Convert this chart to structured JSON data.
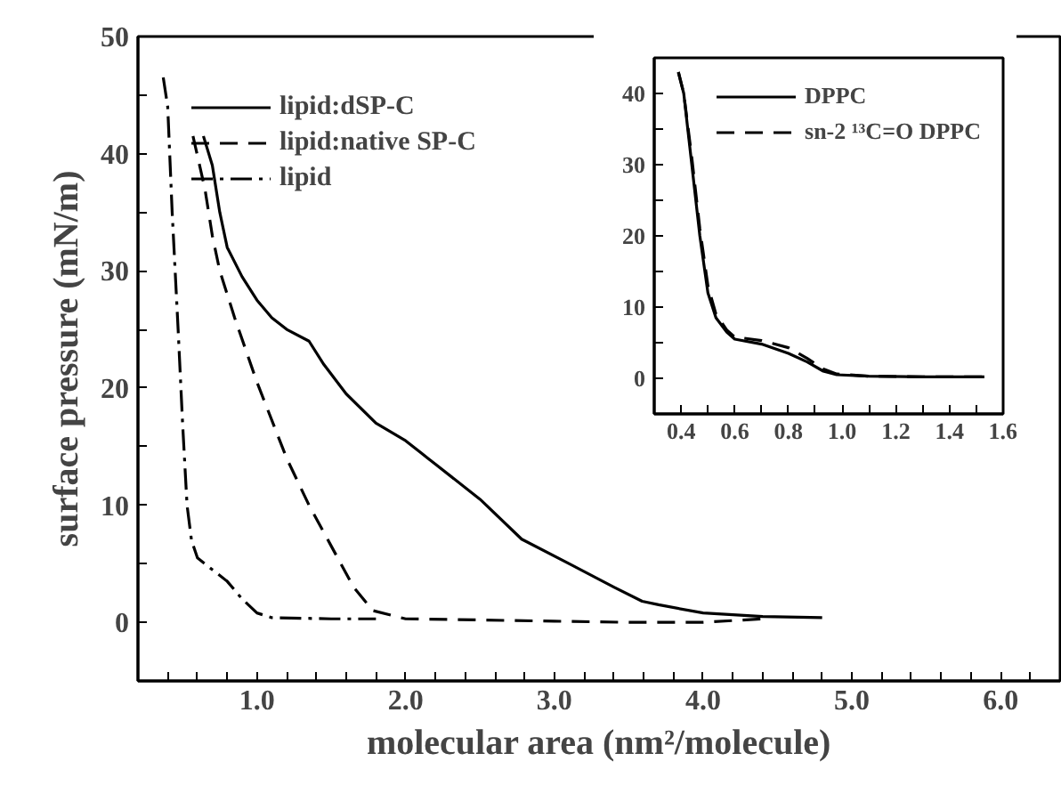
{
  "chart_data": [
    {
      "type": "line",
      "xlabel": "molecular area (nm²/molecule)",
      "ylabel": "surface pressure (mN/m)",
      "xlim": [
        0.2,
        6.4
      ],
      "ylim": [
        -5,
        50
      ],
      "legend": "top left",
      "grid": false,
      "xticks": [
        {
          "value": 0.4,
          "label": null
        },
        {
          "value": 0.6,
          "label": null
        },
        {
          "value": 0.8,
          "label": null
        },
        {
          "value": 1,
          "label": "1.0"
        },
        {
          "value": 1.2,
          "label": null
        },
        {
          "value": 1.4,
          "label": null
        },
        {
          "value": 1.6,
          "label": null
        },
        {
          "value": 1.8,
          "label": null
        },
        {
          "value": 2,
          "label": "2.0"
        },
        {
          "value": 2.2,
          "label": null
        },
        {
          "value": 2.4,
          "label": null
        },
        {
          "value": 2.6,
          "label": null
        },
        {
          "value": 2.8,
          "label": null
        },
        {
          "value": 3,
          "label": "3.0"
        },
        {
          "value": 3.2,
          "label": null
        },
        {
          "value": 3.4,
          "label": null
        },
        {
          "value": 3.6,
          "label": null
        },
        {
          "value": 3.8,
          "label": null
        },
        {
          "value": 4,
          "label": "4.0"
        },
        {
          "value": 4.2,
          "label": null
        },
        {
          "value": 4.4,
          "label": null
        },
        {
          "value": 4.6,
          "label": null
        },
        {
          "value": 4.8,
          "label": null
        },
        {
          "value": 5,
          "label": "5.0"
        },
        {
          "value": 5.2,
          "label": null
        },
        {
          "value": 5.4,
          "label": null
        },
        {
          "value": 5.6,
          "label": null
        },
        {
          "value": 5.8,
          "label": null
        },
        {
          "value": 6,
          "label": "6.0"
        },
        {
          "value": 6.2,
          "label": null
        }
      ],
      "yticks": [
        {
          "value": -5,
          "label": null
        },
        0,
        {
          "value": 5,
          "label": null
        },
        10,
        {
          "value": 15,
          "label": null
        },
        20,
        {
          "value": 25,
          "label": null
        },
        30,
        {
          "value": 35,
          "label": null
        },
        40,
        {
          "value": 45,
          "label": null
        },
        50
      ],
      "series": [
        {
          "name": "lipid:dSP-C",
          "color": "#000000",
          "line_style": "solid",
          "x": [
            0.64,
            0.7,
            0.75,
            0.8,
            0.9,
            1.0,
            1.1,
            1.2,
            1.35,
            1.45,
            1.6,
            1.8,
            2.0,
            2.15,
            2.2,
            2.5,
            2.78,
            3.1,
            3.4,
            3.59,
            3.7,
            4.0,
            4.4,
            4.8
          ],
          "values": [
            41.5,
            39,
            35,
            32,
            29.5,
            27.5,
            26,
            25,
            24,
            22,
            19.5,
            17,
            15.5,
            14,
            13.5,
            10.5,
            7.1,
            5,
            3,
            1.8,
            1.5,
            0.8,
            0.5,
            0.4
          ]
        },
        {
          "name": "lipid:native SP-C",
          "color": "#000000",
          "line_style": "dashed",
          "x": [
            0.57,
            0.65,
            0.7,
            0.75,
            0.85,
            1.0,
            1.2,
            1.35,
            1.5,
            1.65,
            1.78,
            2.0,
            2.5,
            3.0,
            3.5,
            4.0,
            4.4
          ],
          "values": [
            41.5,
            37,
            33,
            30,
            26,
            20.5,
            14,
            10,
            6.5,
            3,
            1,
            0.3,
            0.2,
            0.1,
            0,
            0,
            0.3
          ]
        },
        {
          "name": "lipid",
          "color": "#000000",
          "line_style": "dashdot",
          "x": [
            0.37,
            0.4,
            0.43,
            0.47,
            0.5,
            0.53,
            0.56,
            0.6,
            0.7,
            0.8,
            0.9,
            1.0,
            1.1,
            1.5,
            1.8
          ],
          "values": [
            46.5,
            44,
            35,
            25,
            17,
            10,
            7,
            5.5,
            4.5,
            3.5,
            2,
            0.8,
            0.4,
            0.3,
            0.3
          ]
        }
      ]
    },
    {
      "type": "line",
      "xlim": [
        0.3,
        1.6
      ],
      "ylim": [
        -5,
        45
      ],
      "legend": "top right",
      "grid": false,
      "xticks": [
        {
          "value": 0.3,
          "label": null
        },
        0.4,
        {
          "value": 0.5,
          "label": null
        },
        0.6,
        {
          "value": 0.7,
          "label": null
        },
        0.8,
        {
          "value": 0.9,
          "label": null
        },
        {
          "value": 1,
          "label": "1.0"
        },
        {
          "value": 1.1,
          "label": null
        },
        1.2,
        {
          "value": 1.3,
          "label": null
        },
        1.4,
        {
          "value": 1.5,
          "label": null
        },
        1.6
      ],
      "yticks": [
        {
          "value": -5,
          "label": null
        },
        0,
        {
          "value": 5,
          "label": null
        },
        10,
        {
          "value": 15,
          "label": null
        },
        20,
        {
          "value": 25,
          "label": null
        },
        30,
        {
          "value": 35,
          "label": null
        },
        40
      ],
      "series": [
        {
          "name": "DPPC",
          "color": "#000000",
          "line_style": "solid",
          "x": [
            0.39,
            0.41,
            0.44,
            0.47,
            0.5,
            0.53,
            0.57,
            0.6,
            0.7,
            0.8,
            0.87,
            0.93,
            0.98,
            1.1,
            1.3,
            1.53
          ],
          "values": [
            43,
            40,
            30,
            20,
            12,
            8.5,
            6.5,
            5.5,
            4.8,
            3.5,
            2.3,
            1,
            0.5,
            0.3,
            0.2,
            0.2
          ]
        },
        {
          "name": "sn-2 ¹³C=O DPPC",
          "color": "#000000",
          "line_style": "dashed",
          "x": [
            0.39,
            0.41,
            0.44,
            0.47,
            0.5,
            0.53,
            0.57,
            0.6,
            0.7,
            0.8,
            0.87,
            0.93,
            0.98,
            1.1,
            1.3,
            1.53
          ],
          "values": [
            43,
            40,
            31,
            21,
            13,
            9,
            6.8,
            5.8,
            5.3,
            4.3,
            2.8,
            1.3,
            0.6,
            0.3,
            0.2,
            0.2
          ]
        }
      ]
    }
  ]
}
